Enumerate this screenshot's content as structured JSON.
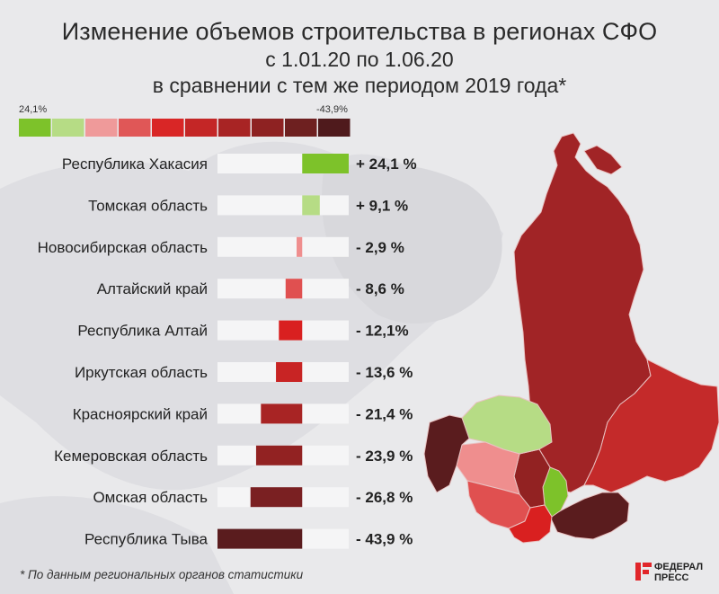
{
  "title": "Изменение объемов строительства в регионах СФО",
  "subtitle1": "с 1.01.20 по 1.06.20",
  "subtitle2": "в сравнении с тем же периодом 2019 года*",
  "scale": {
    "left_label": "24,1%",
    "right_label": "-43,9%",
    "colors": [
      "#7dc22a",
      "#b6dc85",
      "#ef9a9a",
      "#e05757",
      "#d92626",
      "#c42626",
      "#a82424",
      "#8e2222",
      "#6e2020",
      "#4f1a1c"
    ]
  },
  "chart_data": {
    "type": "bar",
    "categories": [
      "Республика Хакасия",
      "Томская область",
      "Новосибирская область",
      "Алтайский край",
      "Республика Алтай",
      "Иркутская область",
      "Красноярский край",
      "Кемеровская область",
      "Омская область",
      "Республика Тыва"
    ],
    "values": [
      24.1,
      9.1,
      -2.9,
      -8.6,
      -12.1,
      -13.6,
      -21.4,
      -23.9,
      -26.8,
      -43.9
    ],
    "value_labels": [
      "+ 24,1 %",
      "+ 9,1 %",
      "- 2,9 %",
      "- 8,6 %",
      "- 12,1%",
      "- 13,6 %",
      "- 21,4 %",
      "- 23,9 %",
      "- 26,8 %",
      "- 43,9 %"
    ],
    "colors": [
      "#7dc22a",
      "#b6dc85",
      "#ef8e8e",
      "#e05050",
      "#d92020",
      "#c82424",
      "#a82424",
      "#922222",
      "#7a2022",
      "#5a1c1e"
    ],
    "xlim": [
      -43.9,
      24.1
    ]
  },
  "footnote": "* По данным региональных органов статистики",
  "logo": {
    "line1": "ФЕДЕРАЛ",
    "line2": "ПРЕСС"
  }
}
